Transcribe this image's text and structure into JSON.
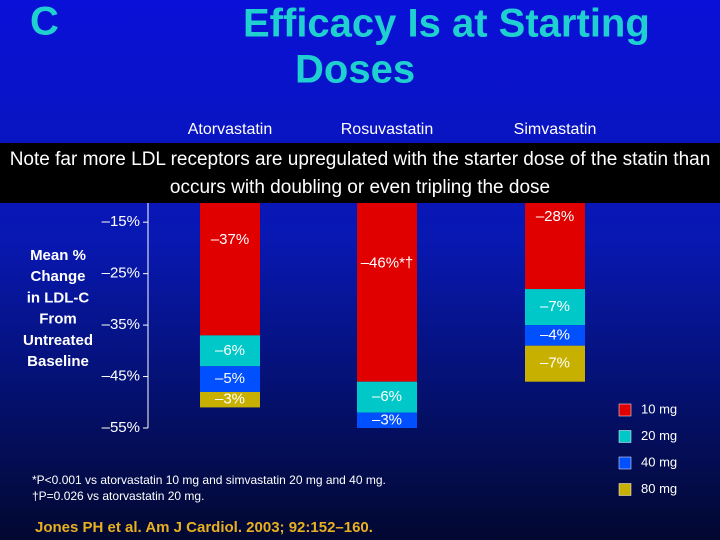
{
  "chart_data": {
    "type": "stacked_bar",
    "panel_label": "C",
    "title_lines": [
      "Efficacy Is at Starting",
      "Doses"
    ],
    "note": "Note far more LDL receptors are upregulated with the starter dose of the statin than occurs with doubling or even tripling the dose",
    "categories": [
      "Atorvastatin",
      "Rosuvastatin",
      "Simvastatin"
    ],
    "y_label_lines": [
      "Mean %",
      "Change",
      "in LDL-C",
      "From",
      "Untreated",
      "Baseline"
    ],
    "ylim": [
      -55,
      0
    ],
    "yticks": [
      {
        "value": -15,
        "label": "–15%"
      },
      {
        "value": -25,
        "label": "–25%"
      },
      {
        "value": -35,
        "label": "–35%"
      },
      {
        "value": -45,
        "label": "–45%"
      },
      {
        "value": -55,
        "label": "–55%"
      }
    ],
    "series": [
      {
        "name": "10 mg",
        "color": "#e00000",
        "values": [
          -37,
          -46,
          -28
        ],
        "value_labels": [
          "–37%",
          "–46%*†",
          "–28%"
        ]
      },
      {
        "name": "20 mg",
        "color": "#00c8c8",
        "values": [
          -6,
          -6,
          -7
        ],
        "value_labels": [
          "–6%",
          "–6%",
          "–7%"
        ]
      },
      {
        "name": "40 mg",
        "color": "#0050ff",
        "values": [
          -5,
          -3,
          -4
        ],
        "value_labels": [
          "–5%",
          "–3%",
          "–4%"
        ]
      },
      {
        "name": "80 mg",
        "color": "#c8b000",
        "values": [
          -3,
          null,
          -7
        ],
        "value_labels": [
          "–3%",
          null,
          "–7%"
        ]
      }
    ],
    "legend": "right",
    "footnotes": [
      "*P<0.001 vs atorvastatin 10 mg and simvastatin 20 mg and 40 mg.",
      "†P=0.026 vs atorvastatin 20 mg."
    ],
    "reference": "Jones PH et al. Am J Cardiol. 2003; 92:152–160."
  }
}
